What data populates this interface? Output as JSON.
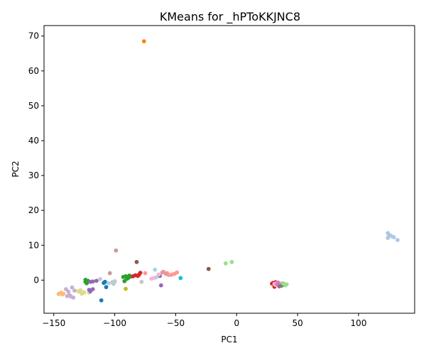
{
  "chart_data": {
    "type": "scatter",
    "title": "KMeans for _hPToKKJNC8",
    "xlabel": "PC1",
    "ylabel": "PC2",
    "xlim": [
      -158,
      146
    ],
    "ylim": [
      -9.5,
      73
    ],
    "xticks": [
      -150,
      -100,
      -50,
      0,
      50,
      100
    ],
    "yticks": [
      0,
      10,
      20,
      30,
      40,
      50,
      60,
      70
    ],
    "grid": false,
    "legend": "none",
    "series": [
      {
        "color": "#ff7f0e",
        "points": [
          [
            -76,
            68.5
          ]
        ]
      },
      {
        "color": "#ffbb78",
        "points": [
          [
            -145,
            -3.8
          ],
          [
            -143,
            -4.1
          ],
          [
            -144,
            -3.6
          ],
          [
            -142,
            -3.9
          ],
          [
            -146,
            -4.0
          ]
        ]
      },
      {
        "color": "#c5b0d5",
        "points": [
          [
            -140,
            -2.6
          ],
          [
            -138,
            -3.3
          ],
          [
            -135,
            -2.1
          ],
          [
            -136,
            -4.7
          ],
          [
            -139,
            -4.6
          ],
          [
            -134,
            -5.0
          ],
          [
            -137,
            -4.3
          ],
          [
            -133,
            -3.0
          ]
        ]
      },
      {
        "color": "#dbdb8d",
        "points": [
          [
            -129,
            -3.3
          ],
          [
            -127,
            -3.9
          ],
          [
            -125,
            -3.5
          ],
          [
            -128,
            -2.9
          ],
          [
            -121,
            -3.6
          ],
          [
            -130,
            -3.2
          ]
        ]
      },
      {
        "color": "#2ca02c",
        "points": [
          [
            -124,
            0.1
          ],
          [
            -123,
            -0.9
          ],
          [
            -122,
            -0.2
          ],
          [
            -124,
            -0.5
          ],
          [
            -93,
            0.9
          ],
          [
            -91,
            1.1
          ],
          [
            -89,
            0.6
          ],
          [
            -88,
            1.3
          ],
          [
            -92,
            -0.3
          ],
          [
            -90,
            0.4
          ],
          [
            -87,
            1.0
          ]
        ]
      },
      {
        "color": "#9467bd",
        "points": [
          [
            -121,
            -2.8
          ],
          [
            -118,
            -2.6
          ],
          [
            -120,
            -3.2
          ],
          [
            -115,
            -0.2
          ],
          [
            -118,
            -0.4
          ],
          [
            -120,
            -0.5
          ],
          [
            -62,
            -1.5
          ],
          [
            -63,
            1.2
          ]
        ]
      },
      {
        "color": "#1f77b4",
        "points": [
          [
            -111,
            -5.8
          ],
          [
            -108,
            -0.5
          ],
          [
            -107,
            -2.0
          ],
          [
            -109,
            -0.8
          ]
        ]
      },
      {
        "color": "#9edae5",
        "points": [
          [
            -105,
            -0.9
          ],
          [
            -101,
            -1.1
          ],
          [
            -100,
            -0.3
          ],
          [
            -66,
            0.8
          ],
          [
            -67,
            3.0
          ]
        ]
      },
      {
        "color": "#c7c7c7",
        "points": [
          [
            -112,
            0.3
          ],
          [
            -102,
            -0.6
          ],
          [
            -100,
            -0.5
          ],
          [
            -78,
            -0.5
          ]
        ]
      },
      {
        "color": "#c49c94",
        "points": [
          [
            -104,
            2.0
          ],
          [
            -99,
            8.5
          ]
        ]
      },
      {
        "color": "#8c564b",
        "points": [
          [
            -82,
            5.2
          ],
          [
            -23,
            3.2
          ]
        ]
      },
      {
        "color": "#d62728",
        "points": [
          [
            -85,
            1.1
          ],
          [
            -83,
            1.4
          ],
          [
            -80,
            1.6
          ],
          [
            -79,
            2.1
          ],
          [
            -81,
            1.2
          ],
          [
            30,
            -0.8
          ],
          [
            31,
            -1.9
          ],
          [
            33,
            -1.2
          ],
          [
            29,
            -1.0
          ],
          [
            35,
            -1.4
          ],
          [
            32,
            -0.6
          ]
        ]
      },
      {
        "color": "#bcbd22",
        "points": [
          [
            -91,
            -2.5
          ]
        ]
      },
      {
        "color": "#ff9896",
        "points": [
          [
            -75,
            2.0
          ],
          [
            -60,
            2.4
          ],
          [
            -56,
            1.5
          ],
          [
            -54,
            1.5
          ],
          [
            -51,
            1.8
          ],
          [
            -49,
            2.2
          ],
          [
            -57,
            2.0
          ],
          [
            -53,
            1.6
          ]
        ]
      },
      {
        "color": "#f7b6d2",
        "points": [
          [
            -70,
            0.4
          ],
          [
            -68,
            0.6
          ],
          [
            -64,
            1.6
          ],
          [
            31,
            -1.1
          ],
          [
            33,
            -0.8
          ],
          [
            35,
            -1.5
          ],
          [
            37,
            -0.9
          ],
          [
            34,
            -1.3
          ],
          [
            36,
            -1.0
          ],
          [
            32,
            -1.4
          ]
        ]
      },
      {
        "color": "#e377c2",
        "points": [
          [
            33,
            -1.2
          ],
          [
            36,
            -1.3
          ],
          [
            34,
            -0.7
          ]
        ]
      },
      {
        "color": "#7f7f7f",
        "points": [
          [
            37,
            -1.6
          ],
          [
            35,
            -1.8
          ]
        ]
      },
      {
        "color": "#e7969c",
        "points": [
          [
            -58,
            1.8
          ],
          [
            -61,
            2.2
          ]
        ]
      },
      {
        "color": "#98df8a",
        "points": [
          [
            -9,
            4.8
          ],
          [
            -4,
            5.2
          ],
          [
            39,
            -1.1
          ],
          [
            40,
            -1.5
          ],
          [
            38,
            -0.9
          ],
          [
            41,
            -1.2
          ]
        ]
      },
      {
        "color": "#17becf",
        "points": [
          [
            -46,
            0.6
          ]
        ]
      },
      {
        "color": "#aec7e8",
        "points": [
          [
            124,
            13.5
          ],
          [
            125,
            13.0
          ],
          [
            127,
            12.6
          ],
          [
            124,
            12.1
          ],
          [
            129,
            12.3
          ],
          [
            126,
            12.8
          ],
          [
            132,
            11.5
          ]
        ]
      }
    ]
  }
}
